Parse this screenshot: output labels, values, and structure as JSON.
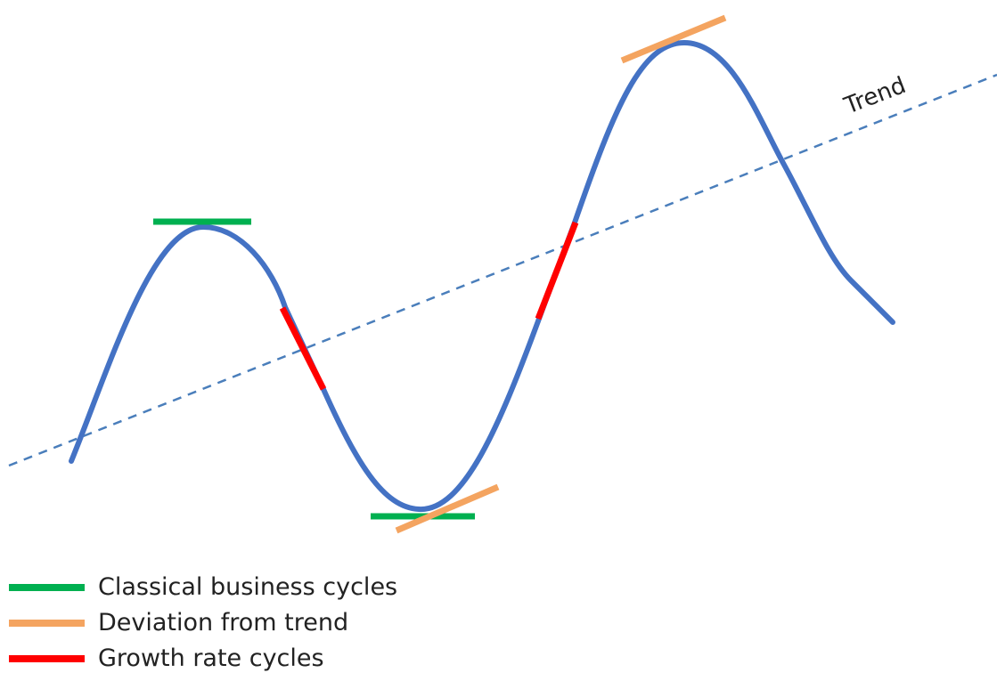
{
  "diagram": {
    "trend_label": "Trend",
    "colors": {
      "curve": "#4472C4",
      "trend": "#4A7EBB",
      "classical": "#00B050",
      "deviation": "#F4A460",
      "growth": "#FF0000"
    }
  },
  "legend": {
    "items": [
      {
        "label": "Classical business cycles",
        "color": "#00B050"
      },
      {
        "label": "Deviation from trend",
        "color": "#F4A460"
      },
      {
        "label": "Growth rate cycles",
        "color": "#FF0000"
      }
    ]
  }
}
